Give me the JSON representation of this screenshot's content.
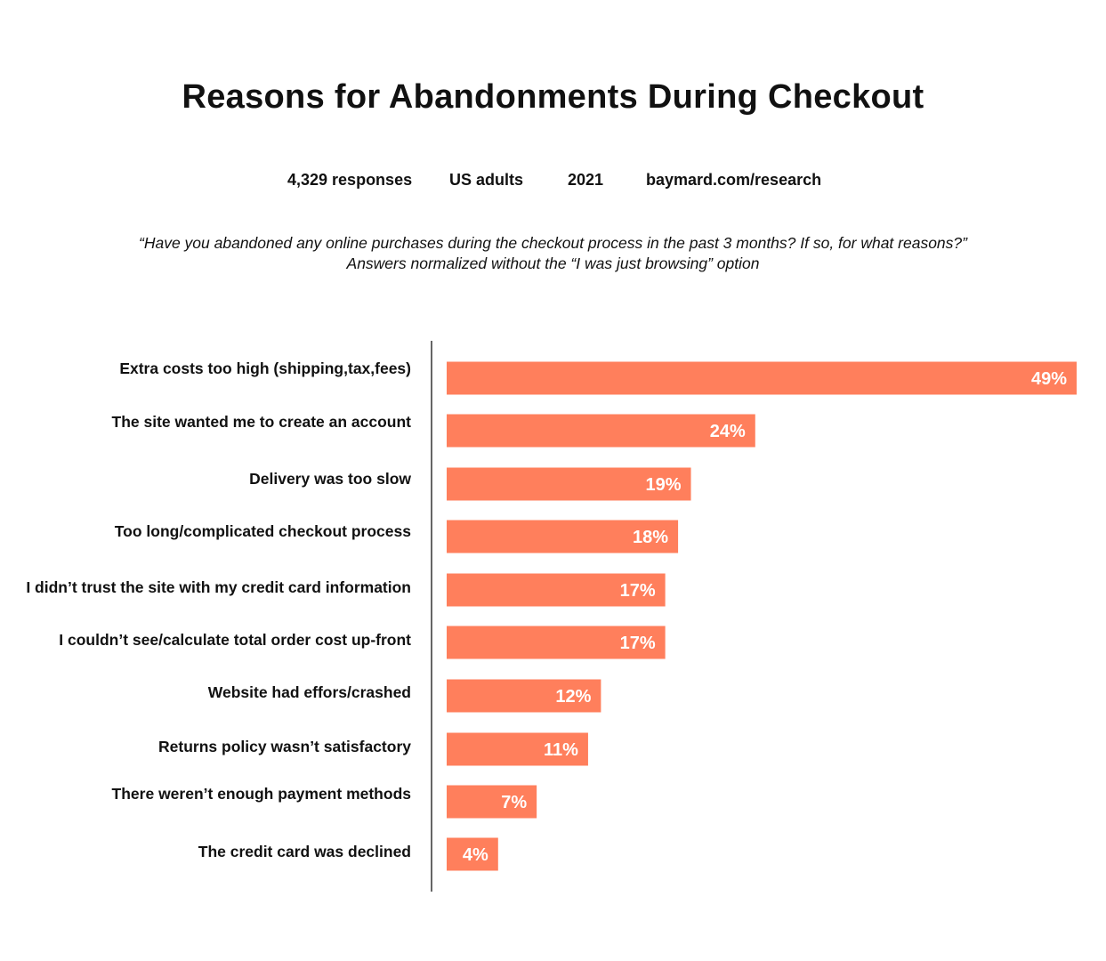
{
  "header": {
    "title": "Reasons for Abandonments During Checkout",
    "meta": {
      "responses": "4,329 responses",
      "population": "US adults",
      "year": "2021",
      "source": "baymard.com/research"
    },
    "question": "“Have you abandoned any online purchases during the checkout process in the past 3 months? If so, for what reasons?”",
    "note": "Answers normalized without the “I was just browsing” option"
  },
  "chart_data": {
    "type": "bar",
    "orientation": "horizontal",
    "categories": [
      "Extra costs too high (shipping,tax,fees)",
      "The site wanted me to create an account",
      "Delivery was too slow",
      "Too long/complicated checkout process",
      "I didn’t trust the site with my credit card information",
      "I couldn’t see/calculate total order cost up-front",
      "Website had effors/crashed",
      "Returns policy wasn’t satisfactory",
      "There weren’t enough payment methods",
      "The credit card was declined"
    ],
    "values": [
      49,
      24,
      19,
      18,
      17,
      17,
      12,
      11,
      7,
      4
    ],
    "value_labels": [
      "49%",
      "24%",
      "19%",
      "18%",
      "17%",
      "17%",
      "12%",
      "11%",
      "7%",
      "4%"
    ],
    "unit": "%",
    "xlim": [
      0,
      49
    ],
    "grid": false,
    "bar_color": "#FF7F5C",
    "axis_color": "#333333"
  }
}
